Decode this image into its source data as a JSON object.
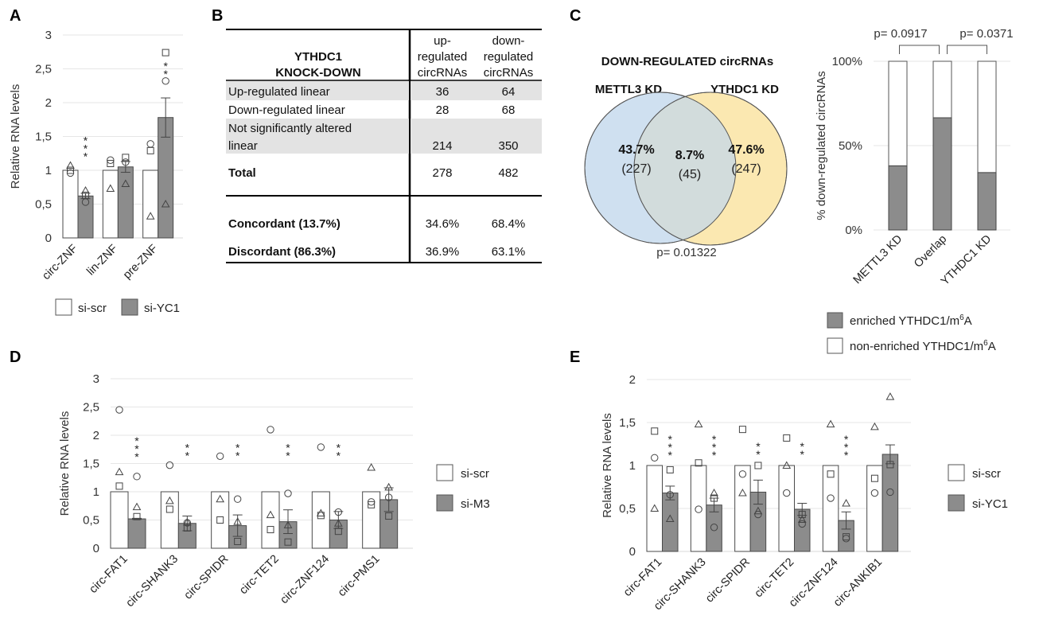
{
  "panels": {
    "A": "A",
    "B": "B",
    "C": "C",
    "D": "D",
    "E": "E"
  },
  "colors": {
    "control_bar": "#ffffff",
    "treatment_bar": "#8c8c8c",
    "venn_left": "#cfe0f0",
    "venn_right": "#fbe8b1",
    "venn_overlap": "#d2dcdc",
    "table_shade": "#e3e3e3"
  },
  "chart_data": [
    {
      "id": "A",
      "type": "bar",
      "ylabel": "Relative RNA levels",
      "ylim": [
        0,
        3
      ],
      "yticks": [
        "0",
        "0,5",
        "1",
        "1,5",
        "2",
        "2,5",
        "3"
      ],
      "categories": [
        "circ-ZNF",
        "lin-ZNF",
        "pre-ZNF"
      ],
      "series": [
        {
          "name": "si-scr",
          "values": [
            1,
            1,
            1
          ],
          "points": [
            [
              {
                "s": "tri",
                "v": 1.07
              },
              {
                "s": "sq",
                "v": 1.0
              },
              {
                "s": "ci",
                "v": 0.96
              }
            ],
            [
              {
                "s": "ci",
                "v": 1.15
              },
              {
                "s": "sq",
                "v": 1.1
              },
              {
                "s": "tri",
                "v": 0.73
              }
            ],
            [
              {
                "s": "ci",
                "v": 1.39
              },
              {
                "s": "sq",
                "v": 1.29
              },
              {
                "s": "tri",
                "v": 0.32
              }
            ]
          ]
        },
        {
          "name": "si-YC1",
          "values": [
            0.62,
            1.05,
            1.78
          ],
          "errors": [
            0.04,
            0.08,
            0.29
          ],
          "points": [
            [
              {
                "s": "tri",
                "v": 0.7
              },
              {
                "s": "sq",
                "v": 0.63
              },
              {
                "s": "ci",
                "v": 0.53
              }
            ],
            [
              {
                "s": "sq",
                "v": 1.19
              },
              {
                "s": "ci",
                "v": 1.12
              },
              {
                "s": "tri",
                "v": 0.8
              }
            ],
            [
              {
                "s": "sq",
                "v": 2.74
              },
              {
                "s": "ci",
                "v": 2.32
              },
              {
                "s": "tri",
                "v": 0.5
              }
            ]
          ]
        }
      ],
      "significance": [
        "***",
        "",
        "**"
      ],
      "legend": [
        "si-scr",
        "si-YC1"
      ],
      "legend_position": "bottom"
    },
    {
      "id": "C-venn",
      "type": "venn",
      "title": "DOWN-REGULATED circRNAs",
      "sets": [
        "METTL3 KD",
        "YTHDC1 KD"
      ],
      "regions": [
        {
          "label": "43.7%",
          "count": "(227)"
        },
        {
          "label": "8.7%",
          "count": "(45)"
        },
        {
          "label": "47.6%",
          "count": "(247)"
        }
      ],
      "pvalue": "p= 0.01322"
    },
    {
      "id": "C-stacked",
      "type": "bar",
      "stacked": true,
      "ylabel": "% down-regulated circRNAs",
      "ylim": [
        0,
        100
      ],
      "yticks": [
        "0%",
        "50%",
        "100%"
      ],
      "categories": [
        "METTL3 KD",
        "Overlap",
        "YTHDC1 KD"
      ],
      "series": [
        {
          "name": "enriched YTHDC1/m6A",
          "values": [
            38,
            66.5,
            34
          ]
        },
        {
          "name": "non-enriched YTHDC1/m6A",
          "values": [
            62,
            33.5,
            66
          ]
        }
      ],
      "comparisons": [
        {
          "from": 0,
          "to": 1,
          "label": "p= 0.0917"
        },
        {
          "from": 1,
          "to": 2,
          "label": "p= 0.0371"
        }
      ],
      "legend": [
        {
          "prefix": "enriched YTHDC1/m",
          "sup": "6",
          "suffix": "A"
        },
        {
          "prefix": "non-enriched YTHDC1/m",
          "sup": "6",
          "suffix": "A"
        }
      ],
      "legend_position": "bottom"
    },
    {
      "id": "D",
      "type": "bar",
      "ylabel": "Relative RNA levels",
      "ylim": [
        0,
        3
      ],
      "yticks": [
        "0",
        "0,5",
        "1",
        "1,5",
        "2",
        "2,5",
        "3"
      ],
      "categories": [
        "circ-FAT1",
        "circ-SHANK3",
        "circ-SPIDR",
        "circ-TET2",
        "circ-ZNF124",
        "circ-PMS1"
      ],
      "series": [
        {
          "name": "si-scr",
          "values": [
            1,
            1,
            1,
            1,
            1,
            1
          ],
          "points": [
            [
              {
                "s": "ci",
                "v": 2.45
              },
              {
                "s": "tri",
                "v": 1.35
              },
              {
                "s": "sq",
                "v": 1.1
              }
            ],
            [
              {
                "s": "ci",
                "v": 1.47
              },
              {
                "s": "tri",
                "v": 0.84
              },
              {
                "s": "sq",
                "v": 0.69
              }
            ],
            [
              {
                "s": "ci",
                "v": 1.63
              },
              {
                "s": "tri",
                "v": 0.87
              },
              {
                "s": "sq",
                "v": 0.5
              }
            ],
            [
              {
                "s": "ci",
                "v": 2.1
              },
              {
                "s": "tri",
                "v": 0.59
              },
              {
                "s": "sq",
                "v": 0.33
              }
            ],
            [
              {
                "s": "ci",
                "v": 1.79
              },
              {
                "s": "tri",
                "v": 0.62
              },
              {
                "s": "sq",
                "v": 0.58
              }
            ],
            [
              {
                "s": "tri",
                "v": 1.43
              },
              {
                "s": "ci",
                "v": 0.82
              },
              {
                "s": "sq",
                "v": 0.77
              }
            ]
          ]
        },
        {
          "name": "si-M3",
          "values": [
            0.52,
            0.44,
            0.4,
            0.47,
            0.5,
            0.86
          ],
          "errors": [
            0.01,
            0.13,
            0.19,
            0.21,
            0.15,
            0.21
          ],
          "points": [
            [
              {
                "s": "ci",
                "v": 1.27
              },
              {
                "s": "tri",
                "v": 0.73
              },
              {
                "s": "sq",
                "v": 0.56
              }
            ],
            [
              {
                "s": "ci",
                "v": 0.45
              },
              {
                "s": "tri",
                "v": 0.46
              },
              {
                "s": "sq",
                "v": 0.36
              }
            ],
            [
              {
                "s": "ci",
                "v": 0.87
              },
              {
                "s": "tri",
                "v": 0.47
              },
              {
                "s": "sq",
                "v": 0.12
              }
            ],
            [
              {
                "s": "ci",
                "v": 0.97
              },
              {
                "s": "tri",
                "v": 0.41
              },
              {
                "s": "sq",
                "v": 0.11
              }
            ],
            [
              {
                "s": "ci",
                "v": 0.64
              },
              {
                "s": "tri",
                "v": 0.44
              },
              {
                "s": "sq",
                "v": 0.3
              }
            ],
            [
              {
                "s": "tri",
                "v": 1.08
              },
              {
                "s": "ci",
                "v": 0.9
              },
              {
                "s": "sq",
                "v": 0.57
              }
            ]
          ]
        }
      ],
      "significance": [
        "***",
        "**",
        "**",
        "**",
        "**",
        ""
      ],
      "legend": [
        "si-scr",
        "si-M3"
      ],
      "legend_position": "right"
    },
    {
      "id": "E",
      "type": "bar",
      "ylabel": "Relative RNA levels",
      "ylim": [
        0,
        2
      ],
      "yticks": [
        "0",
        "0,5",
        "1",
        "1,5",
        "2"
      ],
      "categories": [
        "circ-FAT1",
        "circ-SHANK3",
        "circ-SPIDR",
        "circ-TET2",
        "circ-ZNF124",
        "circ-ANKIB1"
      ],
      "series": [
        {
          "name": "si-scr",
          "values": [
            1,
            1,
            1,
            1,
            1,
            1
          ],
          "points": [
            [
              {
                "s": "sq",
                "v": 1.4
              },
              {
                "s": "ci",
                "v": 1.09
              },
              {
                "s": "tri",
                "v": 0.5
              }
            ],
            [
              {
                "s": "tri",
                "v": 1.48
              },
              {
                "s": "sq",
                "v": 1.03
              },
              {
                "s": "ci",
                "v": 0.49
              }
            ],
            [
              {
                "s": "sq",
                "v": 1.42
              },
              {
                "s": "ci",
                "v": 0.9
              },
              {
                "s": "tri",
                "v": 0.68
              }
            ],
            [
              {
                "s": "sq",
                "v": 1.32
              },
              {
                "s": "tri",
                "v": 1.0
              },
              {
                "s": "ci",
                "v": 0.68
              }
            ],
            [
              {
                "s": "tri",
                "v": 1.48
              },
              {
                "s": "sq",
                "v": 0.9
              },
              {
                "s": "ci",
                "v": 0.62
              }
            ],
            [
              {
                "s": "tri",
                "v": 1.45
              },
              {
                "s": "sq",
                "v": 0.85
              },
              {
                "s": "ci",
                "v": 0.68
              }
            ]
          ]
        },
        {
          "name": "si-YC1",
          "values": [
            0.68,
            0.54,
            0.69,
            0.49,
            0.36,
            1.13
          ],
          "errors": [
            0.08,
            0.08,
            0.14,
            0.07,
            0.1,
            0.11
          ],
          "points": [
            [
              {
                "s": "sq",
                "v": 0.95
              },
              {
                "s": "ci",
                "v": 0.66
              },
              {
                "s": "tri",
                "v": 0.38
              }
            ],
            [
              {
                "s": "tri",
                "v": 0.68
              },
              {
                "s": "sq",
                "v": 0.62
              },
              {
                "s": "ci",
                "v": 0.28
              }
            ],
            [
              {
                "s": "sq",
                "v": 1.0
              },
              {
                "s": "tri",
                "v": 0.47
              },
              {
                "s": "ci",
                "v": 0.43
              }
            ],
            [
              {
                "s": "sq",
                "v": 0.43
              },
              {
                "s": "tri",
                "v": 0.37
              },
              {
                "s": "ci",
                "v": 0.32
              }
            ],
            [
              {
                "s": "tri",
                "v": 0.56
              },
              {
                "s": "sq",
                "v": 0.17
              },
              {
                "s": "ci",
                "v": 0.15
              }
            ],
            [
              {
                "s": "tri",
                "v": 1.8
              },
              {
                "s": "sq",
                "v": 1.01
              },
              {
                "s": "ci",
                "v": 0.69
              }
            ]
          ]
        }
      ],
      "significance": [
        "***",
        "***",
        "**",
        "**",
        "***",
        ""
      ],
      "legend": [
        "si-scr",
        "si-YC1"
      ],
      "legend_position": "right"
    }
  ],
  "table": {
    "header": {
      "title_lines": [
        "YTHDC1",
        "KNOCK-DOWN"
      ],
      "col1_lines": [
        "up-",
        "regulated",
        "circRNAs"
      ],
      "col2_lines": [
        "down-",
        "regulated",
        "circRNAs"
      ]
    },
    "rows": [
      {
        "label": "Up-regulated linear",
        "c1": "36",
        "c2": "64",
        "shaded": true
      },
      {
        "label": "Down-regulated linear",
        "c1": "28",
        "c2": "68",
        "shaded": false
      },
      {
        "label_lines": [
          "Not significantly altered",
          "linear"
        ],
        "c1": "214",
        "c2": "350",
        "shaded": true
      }
    ],
    "total": {
      "label": "Total",
      "c1": "278",
      "c2": "482"
    },
    "summary": [
      {
        "label": "Concordant (13.7%)",
        "c1": "34.6%",
        "c2": "68.4%"
      },
      {
        "label": "Discordant (86.3%)",
        "c1": "36.9%",
        "c2": "63.1%"
      }
    ]
  }
}
